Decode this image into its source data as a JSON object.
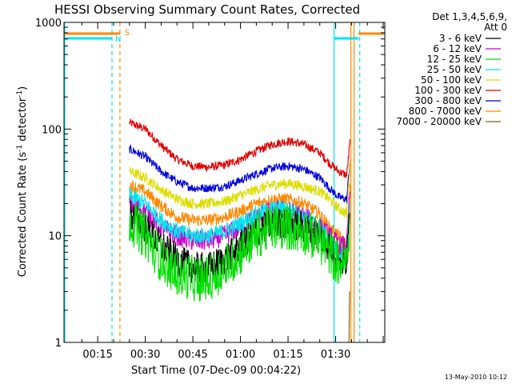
{
  "chart_data": {
    "type": "line",
    "title": "HESSI Observing Summary Count Rates, Corrected",
    "xlabel": "Start Time (07-Dec-09 00:04:22)",
    "ylabel_main": "Corrected Count Rate (s",
    "ylabel_sup1": "-1",
    "ylabel_mid": " detector",
    "ylabel_sup2": "-1",
    "ylabel_end": ")",
    "yscale": "log",
    "ylim": [
      1,
      1000
    ],
    "xlim_minutes": [
      4.37,
      105.5
    ],
    "x_ticks": [
      {
        "m": 15,
        "label": "00:15"
      },
      {
        "m": 30,
        "label": "00:30"
      },
      {
        "m": 45,
        "label": "00:45"
      },
      {
        "m": 60,
        "label": "01:00"
      },
      {
        "m": 75,
        "label": "01:15"
      },
      {
        "m": 90,
        "label": "01:30"
      }
    ],
    "y_ticks": [
      {
        "v": 1,
        "label": "1"
      },
      {
        "v": 10,
        "label": "10"
      },
      {
        "v": 100,
        "label": "100"
      },
      {
        "v": 1000,
        "label": "1000"
      }
    ],
    "legend": {
      "header1": "Det 1,3,4,5,6,9,",
      "header2": "Att 0",
      "placement": "outside-right"
    },
    "series": [
      {
        "name": "3 - 6 keV",
        "color": "#000000",
        "x": [
          25,
          30,
          35,
          40,
          45,
          50,
          55,
          60,
          65,
          70,
          75,
          80,
          85,
          88,
          91,
          93.5,
          94.5
        ],
        "values": [
          16,
          12,
          8,
          6,
          5,
          5,
          6,
          8,
          11,
          13,
          13,
          12,
          10,
          8,
          6,
          5.5,
          20
        ],
        "noise": 0.15
      },
      {
        "name": "6 - 12 keV",
        "color": "#cc00cc",
        "x": [
          25,
          30,
          35,
          40,
          45,
          50,
          55,
          60,
          65,
          70,
          75,
          80,
          85,
          88,
          91,
          93.5,
          94.5
        ],
        "values": [
          20,
          17,
          12,
          10,
          9,
          9,
          10,
          12,
          15,
          17,
          17,
          15,
          12,
          10,
          8,
          8,
          25
        ],
        "noise": 0.1
      },
      {
        "name": "12 - 25 keV",
        "color": "#00dd00",
        "x": [
          25,
          30,
          35,
          40,
          45,
          50,
          55,
          60,
          65,
          70,
          75,
          80,
          85,
          88,
          91,
          93.5,
          94.5
        ],
        "values": [
          14,
          10,
          6,
          4.5,
          4,
          4,
          5,
          7,
          10,
          12,
          12,
          11,
          9,
          7,
          5.5,
          5.5,
          15
        ],
        "noise": 0.22
      },
      {
        "name": "25 - 50 keV",
        "color": "#00e5ee",
        "x": [
          25,
          30,
          35,
          40,
          45,
          50,
          55,
          60,
          65,
          70,
          75,
          80,
          85,
          88,
          91,
          93.5,
          94.5
        ],
        "values": [
          24,
          20,
          14,
          11,
          10,
          10,
          11,
          13,
          16,
          18,
          18,
          15,
          12,
          9,
          7,
          5.5,
          20
        ],
        "noise": 0.08
      },
      {
        "name": "50 - 100 keV",
        "color": "#dddd00",
        "x": [
          25,
          30,
          35,
          40,
          45,
          50,
          55,
          60,
          65,
          70,
          75,
          80,
          85,
          88,
          91,
          93.5,
          94.5
        ],
        "values": [
          40,
          35,
          27,
          22,
          20,
          20,
          21,
          24,
          27,
          30,
          31,
          29,
          26,
          22,
          18,
          16,
          45
        ],
        "noise": 0.05
      },
      {
        "name": "100 - 300 keV",
        "color": "#e00000",
        "x": [
          25,
          30,
          35,
          40,
          45,
          50,
          55,
          60,
          65,
          70,
          75,
          80,
          85,
          88,
          91,
          93.5,
          94.5
        ],
        "values": [
          115,
          100,
          70,
          52,
          45,
          44,
          46,
          52,
          62,
          72,
          77,
          72,
          60,
          48,
          40,
          37,
          75
        ],
        "noise": 0.04
      },
      {
        "name": "300 - 800 keV",
        "color": "#0000dd",
        "x": [
          25,
          30,
          35,
          40,
          45,
          50,
          55,
          60,
          65,
          70,
          75,
          80,
          85,
          88,
          91,
          93.5,
          94.5
        ],
        "values": [
          65,
          55,
          40,
          32,
          28,
          28,
          29,
          33,
          38,
          43,
          45,
          42,
          35,
          28,
          23,
          22,
          50
        ],
        "noise": 0.04
      },
      {
        "name": "800 - 7000 keV",
        "color": "#ff8800",
        "x": [
          25,
          30,
          35,
          40,
          45,
          50,
          55,
          60,
          65,
          70,
          75,
          80,
          85,
          88,
          91,
          93.5,
          94.5
        ],
        "values": [
          30,
          26,
          19,
          15,
          14,
          14,
          15,
          17,
          20,
          22,
          22,
          20,
          16,
          12,
          10,
          8,
          28
        ],
        "noise": 0.06
      },
      {
        "name": "7000 - 20000 keV",
        "color": "#806000",
        "x": [
          94.2,
          94.4
        ],
        "values": [
          1,
          3
        ],
        "noise": 0
      }
    ],
    "markers": {
      "s_label": "S",
      "n_label": "N"
    },
    "timestamp": "13-May-2010 10:12"
  }
}
